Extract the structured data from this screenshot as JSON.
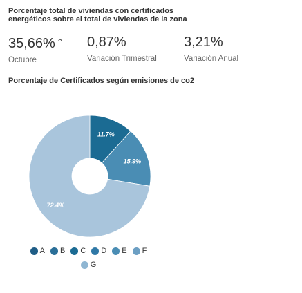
{
  "section_title": "Porcentaje total de viviendas con certificados energéticos sobre el total de viviendas de la zona",
  "kpis": [
    {
      "value": "35,66%",
      "arrow": "⌃",
      "label": "Octubre"
    },
    {
      "value": "0,87%",
      "label": "Variación Trimestral"
    },
    {
      "value": "3,21%",
      "label": "Variación Anual"
    }
  ],
  "chart_data": {
    "type": "pie",
    "title": "Porcentaje de Certificados según emisiones de co2",
    "donut": true,
    "legend_position": "bottom",
    "slices": [
      {
        "name": "A",
        "value": 0,
        "label": "",
        "color": "#1f5d86"
      },
      {
        "name": "B",
        "value": 0,
        "label": "",
        "color": "#2b6f98"
      },
      {
        "name": "C",
        "value": 11.7,
        "label": "11.7%",
        "color": "#1b6b93"
      },
      {
        "name": "D",
        "value": 15.9,
        "label": "15.9%",
        "color": "#4a8db4"
      },
      {
        "name": "E",
        "value": 0,
        "label": "",
        "color": "#6fa3c6"
      },
      {
        "name": "F",
        "value": 0,
        "label": "",
        "color": "#6c9fc3"
      },
      {
        "name": "G",
        "value": 72.4,
        "label": "72.4%",
        "color": "#a9c5dc"
      }
    ]
  },
  "legend": [
    {
      "label": "A",
      "color": "#1f5d86"
    },
    {
      "label": "B",
      "color": "#2b6f98"
    },
    {
      "label": "C",
      "color": "#1b6b93"
    },
    {
      "label": "D",
      "color": "#2f78a6"
    },
    {
      "label": "E",
      "color": "#4a8db4"
    },
    {
      "label": "F",
      "color": "#6c9fc3"
    },
    {
      "label": "G",
      "color": "#8fb6d2"
    }
  ]
}
